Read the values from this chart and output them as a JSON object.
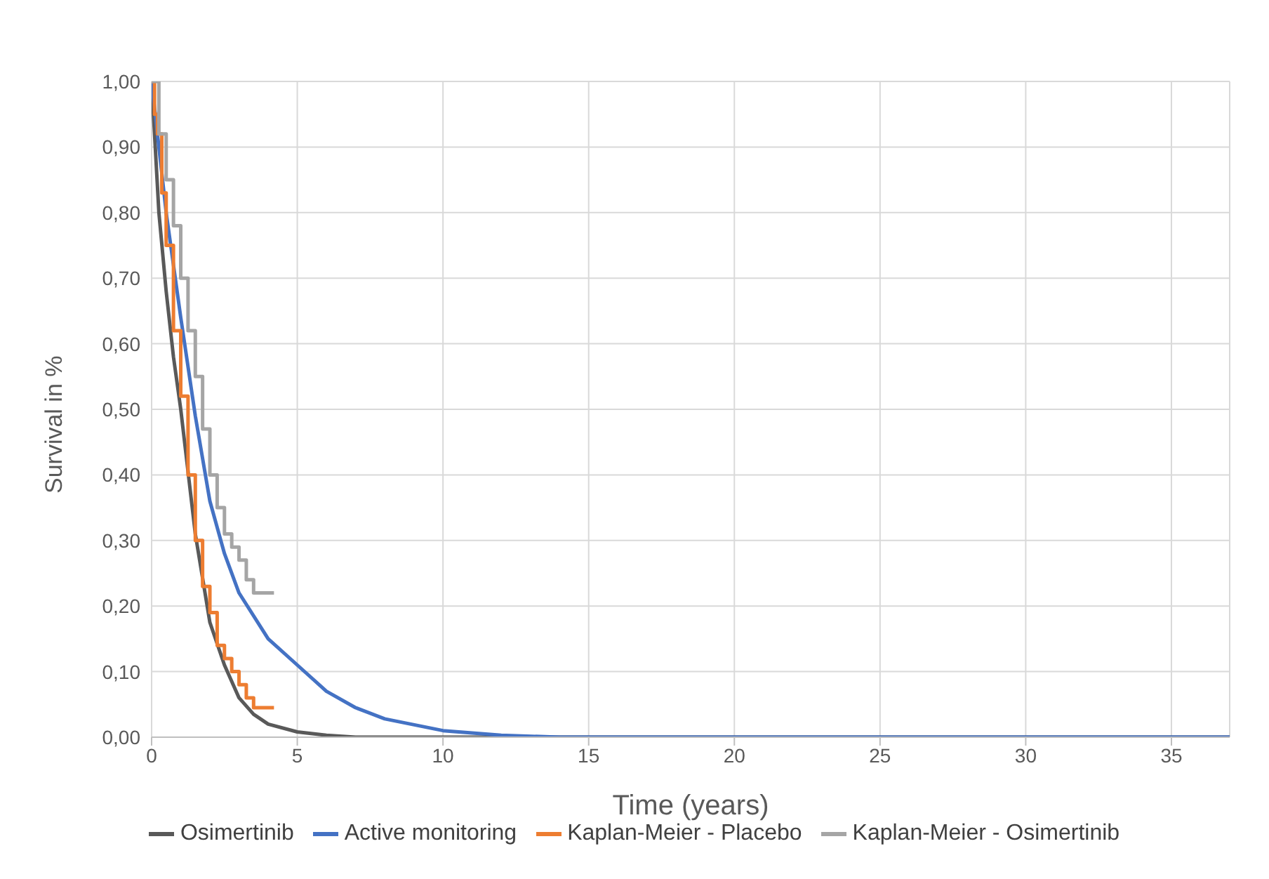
{
  "chart_data": {
    "type": "line",
    "xlabel": "Time (years)",
    "ylabel": "Survival in %",
    "xlim": [
      0,
      37
    ],
    "xticks": [
      0,
      5,
      10,
      15,
      20,
      25,
      30,
      35
    ],
    "ylim": [
      0,
      1
    ],
    "yticks": [
      {
        "value": 0,
        "label": "0,00"
      },
      {
        "value": 0.1,
        "label": "0,10"
      },
      {
        "value": 0.2,
        "label": "0,20"
      },
      {
        "value": 0.3,
        "label": "0,30"
      },
      {
        "value": 0.4,
        "label": "0,40"
      },
      {
        "value": 0.5,
        "label": "0,50"
      },
      {
        "value": 0.6,
        "label": "0,60"
      },
      {
        "value": 0.7,
        "label": "0,70"
      },
      {
        "value": 0.8,
        "label": "0,80"
      },
      {
        "value": 0.9,
        "label": "0,90"
      },
      {
        "value": 1,
        "label": "1,00"
      }
    ],
    "grid": true,
    "legend": "bottom",
    "marker": "none",
    "line_style": "solid",
    "series": [
      {
        "name": "Osimertinib",
        "color": "#595959",
        "x": [
          0,
          0.25,
          0.5,
          0.75,
          1,
          1.5,
          2,
          2.5,
          3,
          3.5,
          4,
          5,
          6,
          7,
          10,
          37
        ],
        "values": [
          1,
          0.8,
          0.68,
          0.58,
          0.5,
          0.31,
          0.175,
          0.11,
          0.06,
          0.035,
          0.02,
          0.008,
          0.003,
          0,
          0,
          0
        ]
      },
      {
        "name": "Active monitoring",
        "color": "#4472c4",
        "x": [
          0,
          0.5,
          1,
          1.5,
          2,
          2.5,
          3,
          4,
          5,
          6,
          7,
          8,
          10,
          12,
          14,
          37
        ],
        "values": [
          1,
          0.8,
          0.64,
          0.49,
          0.36,
          0.28,
          0.22,
          0.15,
          0.11,
          0.07,
          0.045,
          0.028,
          0.01,
          0.003,
          0,
          0
        ]
      },
      {
        "name": "Kaplan-Meier - Placebo",
        "type": "step",
        "color": "#ed7d31",
        "x": [
          0,
          0.1,
          0.2,
          0.35,
          0.5,
          0.75,
          1,
          1.25,
          1.5,
          1.75,
          2,
          2.25,
          2.5,
          2.75,
          3,
          3.25,
          3.5,
          4.2
        ],
        "values": [
          1,
          0.95,
          0.92,
          0.83,
          0.75,
          0.62,
          0.52,
          0.4,
          0.3,
          0.23,
          0.19,
          0.14,
          0.12,
          0.1,
          0.08,
          0.06,
          0.045,
          0.045
        ]
      },
      {
        "name": "Kaplan-Meier - Osimertinib",
        "type": "step",
        "color": "#a5a5a5",
        "x": [
          0,
          0.25,
          0.5,
          0.75,
          1,
          1.25,
          1.5,
          1.75,
          2,
          2.25,
          2.5,
          2.75,
          3,
          3.25,
          3.5,
          4.2
        ],
        "values": [
          1,
          0.92,
          0.85,
          0.78,
          0.7,
          0.62,
          0.55,
          0.47,
          0.4,
          0.35,
          0.31,
          0.29,
          0.27,
          0.24,
          0.22,
          0.22
        ]
      }
    ]
  }
}
